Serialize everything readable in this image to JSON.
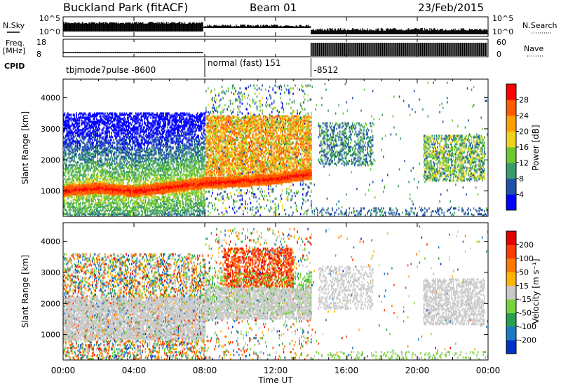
{
  "header": {
    "station": "Buckland Park (fitACF)",
    "beam": "Beam 01",
    "date": "23/Feb/2015"
  },
  "top_panels": {
    "nsky_label": "N.Sky",
    "nsky_ticks": [
      "10^5",
      "10^0"
    ],
    "nsearch_label": "N.Search",
    "nsearch_ticks": [
      "10^5",
      "10^0"
    ],
    "freq_label": "Freq.",
    "freq_unit": "[MHz]",
    "freq_ticks": [
      "18",
      "8"
    ],
    "nave_label": "Nave",
    "nave_ticks": [
      "60",
      "0"
    ],
    "cpid_label": "CPID",
    "cpid_segments": [
      {
        "label": "tbjmode7pulse -8600",
        "start_hour": 0,
        "end_hour": 8
      },
      {
        "label": "normal (fast) 151",
        "start_hour": 8,
        "end_hour": 14
      },
      {
        "label": "-8512",
        "start_hour": 14,
        "end_hour": 24
      }
    ]
  },
  "chart_data": [
    {
      "type": "heatmap",
      "name": "power",
      "ylabel": "Slant Range [km]",
      "xlabel": "",
      "ylim": [
        180,
        4600
      ],
      "xlim": [
        0,
        24
      ],
      "yticks": [
        "1000",
        "2000",
        "3000",
        "4000"
      ],
      "colorbar": {
        "label": "Power [dB]",
        "ticks": [
          "4",
          "8",
          "12",
          "16",
          "20",
          "24",
          "28"
        ],
        "colors": [
          "#0000ff",
          "#2050a8",
          "#3a9a6a",
          "#6ec832",
          "#f0d21e",
          "#ffa000",
          "#ff5a00",
          "#ff0000"
        ],
        "range": [
          0,
          32
        ]
      },
      "features": [
        {
          "desc_key": "main_band",
          "x": [
            0,
            2,
            4,
            6,
            8,
            10,
            12,
            14
          ],
          "y": [
            1000,
            1080,
            980,
            1120,
            1250,
            1300,
            1380,
            1550
          ],
          "value": 28
        },
        {
          "x": [
            8.5,
            12.5
          ],
          "y": [
            1800,
            3200
          ],
          "value": 20
        },
        {
          "x": [
            20.5,
            23.5
          ],
          "y": [
            1400,
            2500
          ],
          "value": 14
        }
      ]
    },
    {
      "type": "heatmap",
      "name": "velocity",
      "ylabel": "Slant Range [km]",
      "xlabel": "Time UT",
      "ylim": [
        180,
        4600
      ],
      "xlim": [
        0,
        24
      ],
      "yticks": [
        "1000",
        "2000",
        "3000",
        "4000"
      ],
      "xticks": [
        "00:00",
        "04:00",
        "08:00",
        "12:00",
        "16:00",
        "20:00",
        "00:00"
      ],
      "colorbar": {
        "label": "Velocity [m s⁻¹]",
        "ticks": [
          "200",
          "100",
          "50",
          "15",
          "-15",
          "-50",
          "-100",
          "-200"
        ],
        "colors": [
          "#0032c8",
          "#1e78c8",
          "#28a050",
          "#78d23c",
          "#c8c8c8",
          "#ffb400",
          "#ff7800",
          "#ff3c00",
          "#e60000"
        ],
        "range": [
          -250,
          250
        ]
      },
      "features": [
        {
          "x": [
            0,
            14
          ],
          "y": [
            600,
            2400
          ],
          "value": 0
        },
        {
          "x": [
            9,
            13
          ],
          "y": [
            2500,
            3800
          ],
          "value": 150
        },
        {
          "x": [
            8,
            14
          ],
          "y": [
            1600,
            2600
          ],
          "value": -60
        }
      ]
    }
  ],
  "colors": {
    "frame": "#000000",
    "background": "#ffffff"
  }
}
